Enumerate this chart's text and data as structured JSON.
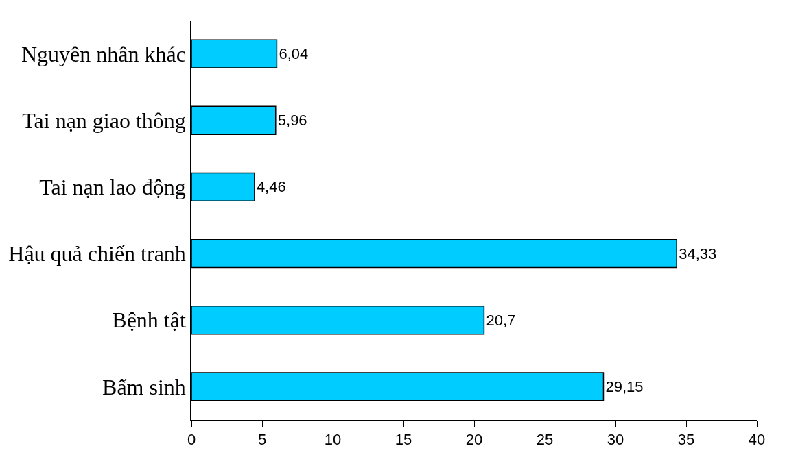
{
  "chart_data": {
    "type": "bar",
    "orientation": "horizontal",
    "categories": [
      "Nguyên nhân khác",
      "Tai nạn giao thông",
      "Tai nạn lao động",
      "Hậu quả chiến tranh",
      "Bệnh tật",
      "Bẩm sinh"
    ],
    "values": [
      6.04,
      5.96,
      4.46,
      34.33,
      20.7,
      29.15
    ],
    "value_labels": [
      "6,04",
      "5,96",
      "4,46",
      "34,33",
      "20,7",
      "29,15"
    ],
    "color": "#00ccff",
    "xlim": [
      0,
      40
    ],
    "xticks": [
      0,
      5,
      10,
      15,
      20,
      25,
      30,
      35,
      40
    ]
  }
}
